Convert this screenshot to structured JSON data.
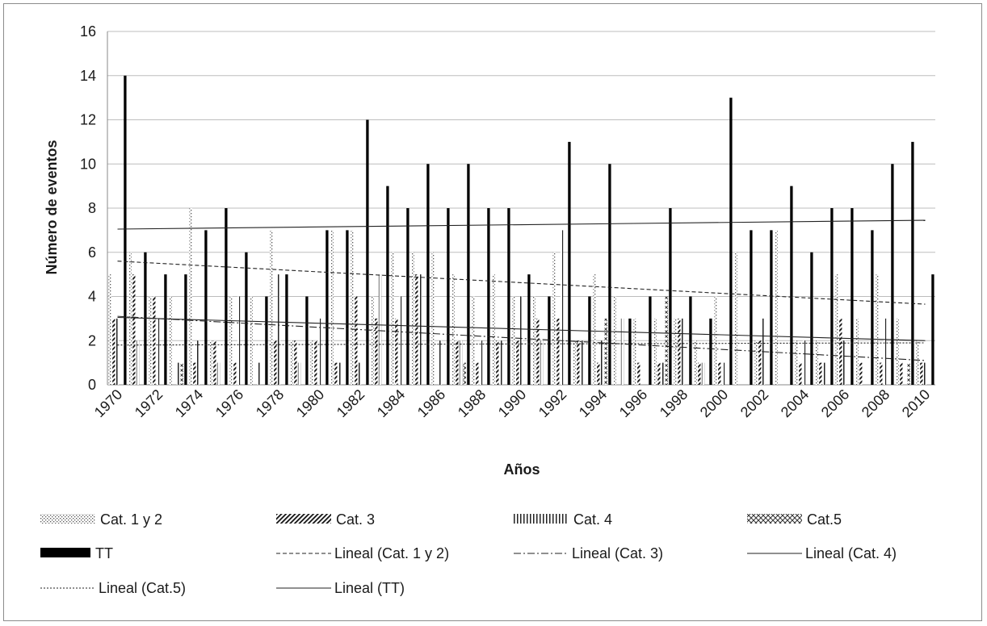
{
  "chart_data": {
    "type": "bar",
    "xlabel": "Años",
    "ylabel": "Número de eventos",
    "ylim": [
      0,
      16
    ],
    "yticks": [
      "0",
      "2",
      "4",
      "6",
      "8",
      "10",
      "12",
      "14",
      "16"
    ],
    "categories": [
      "1970",
      "1971",
      "1972",
      "1973",
      "1974",
      "1975",
      "1976",
      "1977",
      "1978",
      "1979",
      "1980",
      "1981",
      "1982",
      "1983",
      "1984",
      "1985",
      "1986",
      "1987",
      "1988",
      "1989",
      "1990",
      "1991",
      "1992",
      "1993",
      "1994",
      "1995",
      "1996",
      "1997",
      "1998",
      "1999",
      "2000",
      "2001",
      "2002",
      "2003",
      "2004",
      "2005",
      "2006",
      "2007",
      "2008",
      "2009",
      "2010"
    ],
    "xtick_labels": [
      "1970",
      "1972",
      "1974",
      "1976",
      "1978",
      "1980",
      "1982",
      "1984",
      "1986",
      "1988",
      "1990",
      "1992",
      "1994",
      "1996",
      "1998",
      "2000",
      "2002",
      "2004",
      "2006",
      "2008",
      "2010"
    ],
    "grid": "horizontal",
    "legend_position": "bottom",
    "series": [
      {
        "name": "Cat. 1 y 2",
        "pattern": "dots",
        "values": [
          5,
          6,
          4,
          4,
          8,
          2,
          4,
          4,
          7,
          2,
          2,
          7,
          7,
          4,
          6,
          6,
          6,
          5,
          4,
          5,
          4,
          4,
          6,
          2,
          5,
          4,
          3,
          3,
          3,
          2,
          4,
          6,
          2,
          7,
          2,
          2,
          5,
          3,
          5,
          3,
          2
        ]
      },
      {
        "name": "Cat. 3",
        "pattern": "diagonal",
        "values": [
          3,
          5,
          4,
          0,
          1,
          2,
          1,
          0,
          2,
          2,
          2,
          1,
          4,
          3,
          3,
          5,
          0,
          2,
          1,
          2,
          2,
          3,
          3,
          2,
          1,
          0,
          1,
          1,
          3,
          1,
          1,
          0,
          2,
          0,
          1,
          1,
          3,
          1,
          1,
          1,
          1
        ]
      },
      {
        "name": "Cat. 4",
        "pattern": "vertical",
        "values": [
          3,
          2,
          3,
          1,
          2,
          1,
          4,
          1,
          5,
          1,
          3,
          1,
          1,
          5,
          4,
          5,
          2,
          2,
          2,
          2,
          4,
          2,
          7,
          2,
          2,
          3,
          0,
          1,
          3,
          1,
          1,
          0,
          3,
          0,
          2,
          1,
          2,
          0,
          3,
          0,
          1
        ]
      },
      {
        "name": "Cat.5",
        "pattern": "cross",
        "values": [
          0,
          0,
          0,
          1,
          0,
          0,
          0,
          0,
          0,
          0,
          0,
          0,
          0,
          0,
          0,
          0,
          0,
          1,
          0,
          0,
          0,
          0,
          0,
          0,
          3,
          0,
          0,
          4,
          0,
          0,
          0,
          0,
          0,
          0,
          0,
          0,
          0,
          0,
          0,
          1,
          0
        ]
      },
      {
        "name": "TT",
        "pattern": "solid",
        "values": [
          14,
          6,
          5,
          5,
          7,
          8,
          6,
          4,
          5,
          4,
          7,
          7,
          12,
          9,
          8,
          10,
          8,
          10,
          8,
          8,
          5,
          4,
          11,
          4,
          10,
          3,
          4,
          8,
          4,
          3,
          13,
          7,
          7,
          9,
          6,
          8,
          8,
          7,
          10,
          11,
          5
        ]
      }
    ],
    "trendlines": [
      {
        "name": "Lineal (Cat. 1 y 2)",
        "style": "dashed",
        "start": 5.6,
        "end": 3.65
      },
      {
        "name": "Lineal (Cat. 3)",
        "style": "dashdot",
        "start": 3.1,
        "end": 1.1
      },
      {
        "name": "Lineal (Cat. 4)",
        "style": "solid",
        "start": 3.05,
        "end": 2.0
      },
      {
        "name": "Lineal (Cat.5)",
        "style": "dotted",
        "start": 1.8,
        "end": 1.9
      },
      {
        "name": "Lineal (TT)",
        "style": "solid",
        "start": 7.05,
        "end": 7.45
      }
    ]
  },
  "legend": {
    "items": [
      {
        "label": "Cat. 1 y 2",
        "kind": "pattern",
        "pattern": "dots"
      },
      {
        "label": "Cat. 3",
        "kind": "pattern",
        "pattern": "diagonal"
      },
      {
        "label": "Cat. 4",
        "kind": "pattern",
        "pattern": "vertical"
      },
      {
        "label": "Cat.5",
        "kind": "pattern",
        "pattern": "cross"
      },
      {
        "label": "TT",
        "kind": "pattern",
        "pattern": "solid"
      },
      {
        "label": "Lineal (Cat. 1 y 2)",
        "kind": "line",
        "style": "dashed"
      },
      {
        "label": "Lineal (Cat. 3)",
        "kind": "line",
        "style": "dashdot"
      },
      {
        "label": "Lineal (Cat. 4)",
        "kind": "line",
        "style": "solid"
      },
      {
        "label": "Lineal (Cat.5)",
        "kind": "line",
        "style": "dotted"
      },
      {
        "label": "Lineal (TT)",
        "kind": "line",
        "style": "solid"
      }
    ]
  }
}
